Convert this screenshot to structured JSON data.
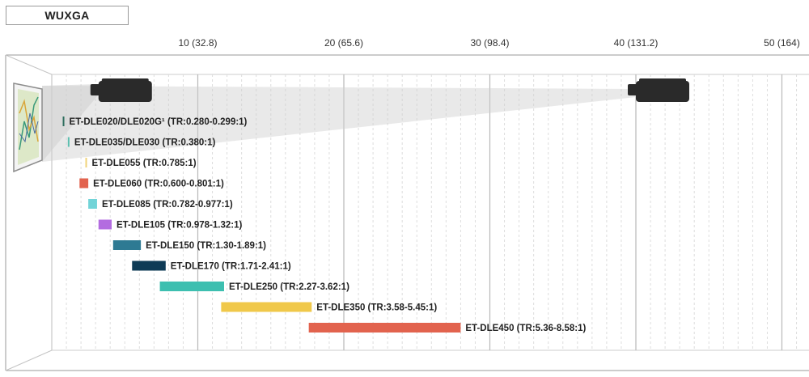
{
  "header": {
    "badge": "WUXGA"
  },
  "colors": {
    "grid_major": "#b8b8b8",
    "grid_minor": "#dddddd",
    "projector": "#2a2a2a",
    "beam": "#cfcfcf"
  },
  "chart_data": {
    "type": "bar",
    "orientation": "horizontal-range",
    "x_ticks": [
      {
        "value": 10,
        "label": "10 (32.8)"
      },
      {
        "value": 20,
        "label": "20 (65.6)"
      },
      {
        "value": 30,
        "label": "30 (98.4)"
      },
      {
        "value": 40,
        "label": "40 (131.2)"
      },
      {
        "value": 50,
        "label": "50 (164)"
      }
    ],
    "xlim": [
      0,
      51
    ],
    "projector_icons_at": [
      3.2,
      40
    ],
    "series": [
      {
        "label": "ET-DLE020/DLE020G¹ (TR:0.280-0.299:1)",
        "start": 0.75,
        "end": 0.8,
        "color": "#2f6f5e"
      },
      {
        "label": "ET-DLE035/DLE030 (TR:0.380:1)",
        "start": 1.1,
        "end": 1.15,
        "color": "#5bbfb0"
      },
      {
        "label": "ET-DLE055 (TR:0.785:1)",
        "start": 2.3,
        "end": 2.4,
        "color": "#f0d37a"
      },
      {
        "label": "ET-DLE060 (TR:0.600-0.801:1)",
        "start": 1.9,
        "end": 2.5,
        "color": "#e2634e"
      },
      {
        "label": "ET-DLE085 (TR:0.782-0.977:1)",
        "start": 2.5,
        "end": 3.1,
        "color": "#72d4d8"
      },
      {
        "label": "ET-DLE105 (TR:0.978-1.32:1)",
        "start": 3.2,
        "end": 4.1,
        "color": "#b36ce0"
      },
      {
        "label": "ET-DLE150 (TR:1.30-1.89:1)",
        "start": 4.2,
        "end": 6.1,
        "color": "#2e7a93"
      },
      {
        "label": "ET-DLE170 (TR:1.71-2.41:1)",
        "start": 5.5,
        "end": 7.8,
        "color": "#0e3b56"
      },
      {
        "label": "ET-DLE250 (TR:2.27-3.62:1)",
        "start": 7.4,
        "end": 11.8,
        "color": "#3dbfb0"
      },
      {
        "label": "ET-DLE350 (TR:3.58-5.45:1)",
        "start": 11.6,
        "end": 17.8,
        "color": "#f0c84a"
      },
      {
        "label": "ET-DLE450 (TR:5.36-8.58:1)",
        "start": 17.6,
        "end": 28,
        "color": "#e2634e"
      }
    ]
  }
}
